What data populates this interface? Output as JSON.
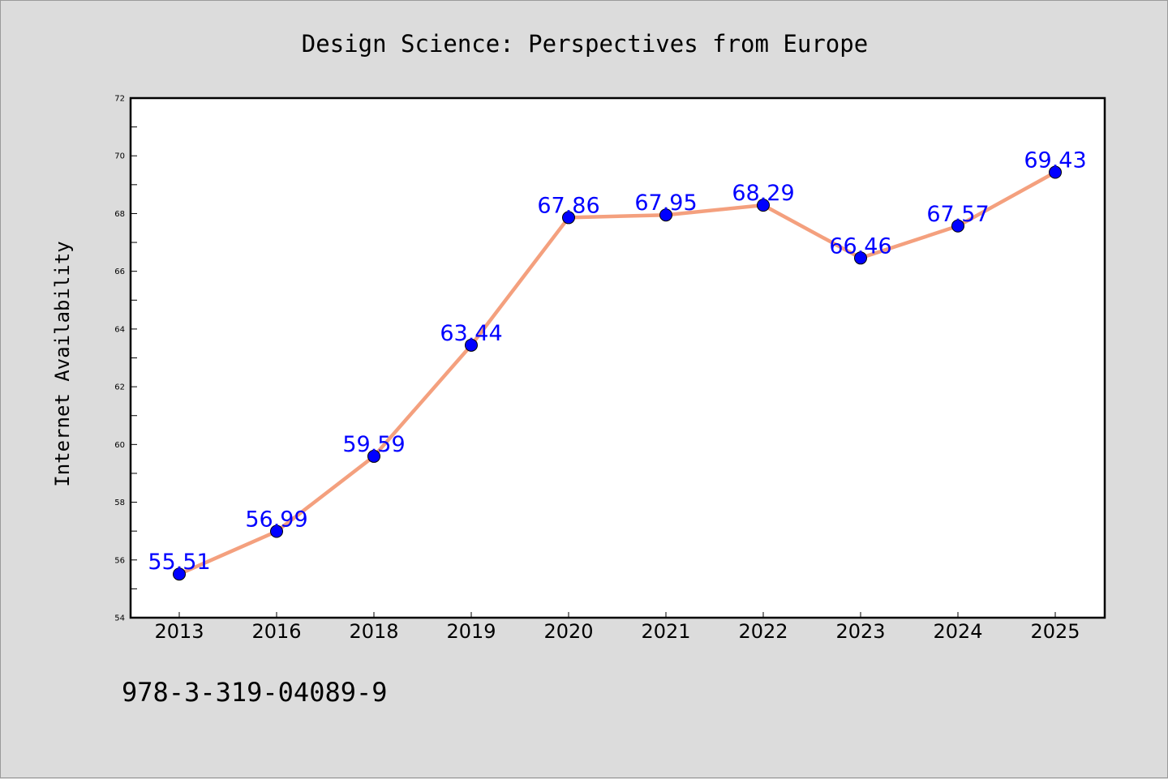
{
  "chart_data": {
    "type": "line",
    "title": "Design Science: Perspectives from Europe",
    "xlabel": "",
    "ylabel": "Internet Availability",
    "categories": [
      "2013",
      "2016",
      "2018",
      "2019",
      "2020",
      "2021",
      "2022",
      "2023",
      "2024",
      "2025"
    ],
    "series": [
      {
        "values": [
          55.51,
          56.99,
          59.59,
          63.44,
          67.86,
          67.95,
          68.29,
          66.46,
          67.57,
          69.43
        ],
        "labels": [
          "55.51",
          "56.99",
          "59.59",
          "63.44",
          "67.86",
          "67.95",
          "68.29",
          "66.46",
          "67.57",
          "69.43"
        ],
        "line_color": "#f4a07e",
        "marker_color": "#0000ff"
      }
    ],
    "ylim": [
      54,
      72
    ],
    "yticks": [
      "54",
      "56",
      "58",
      "60",
      "62",
      "64",
      "66",
      "68",
      "70",
      "72"
    ],
    "grid": false,
    "legend": "none"
  },
  "footer": {
    "isbn": "978-3-319-04089-9"
  }
}
